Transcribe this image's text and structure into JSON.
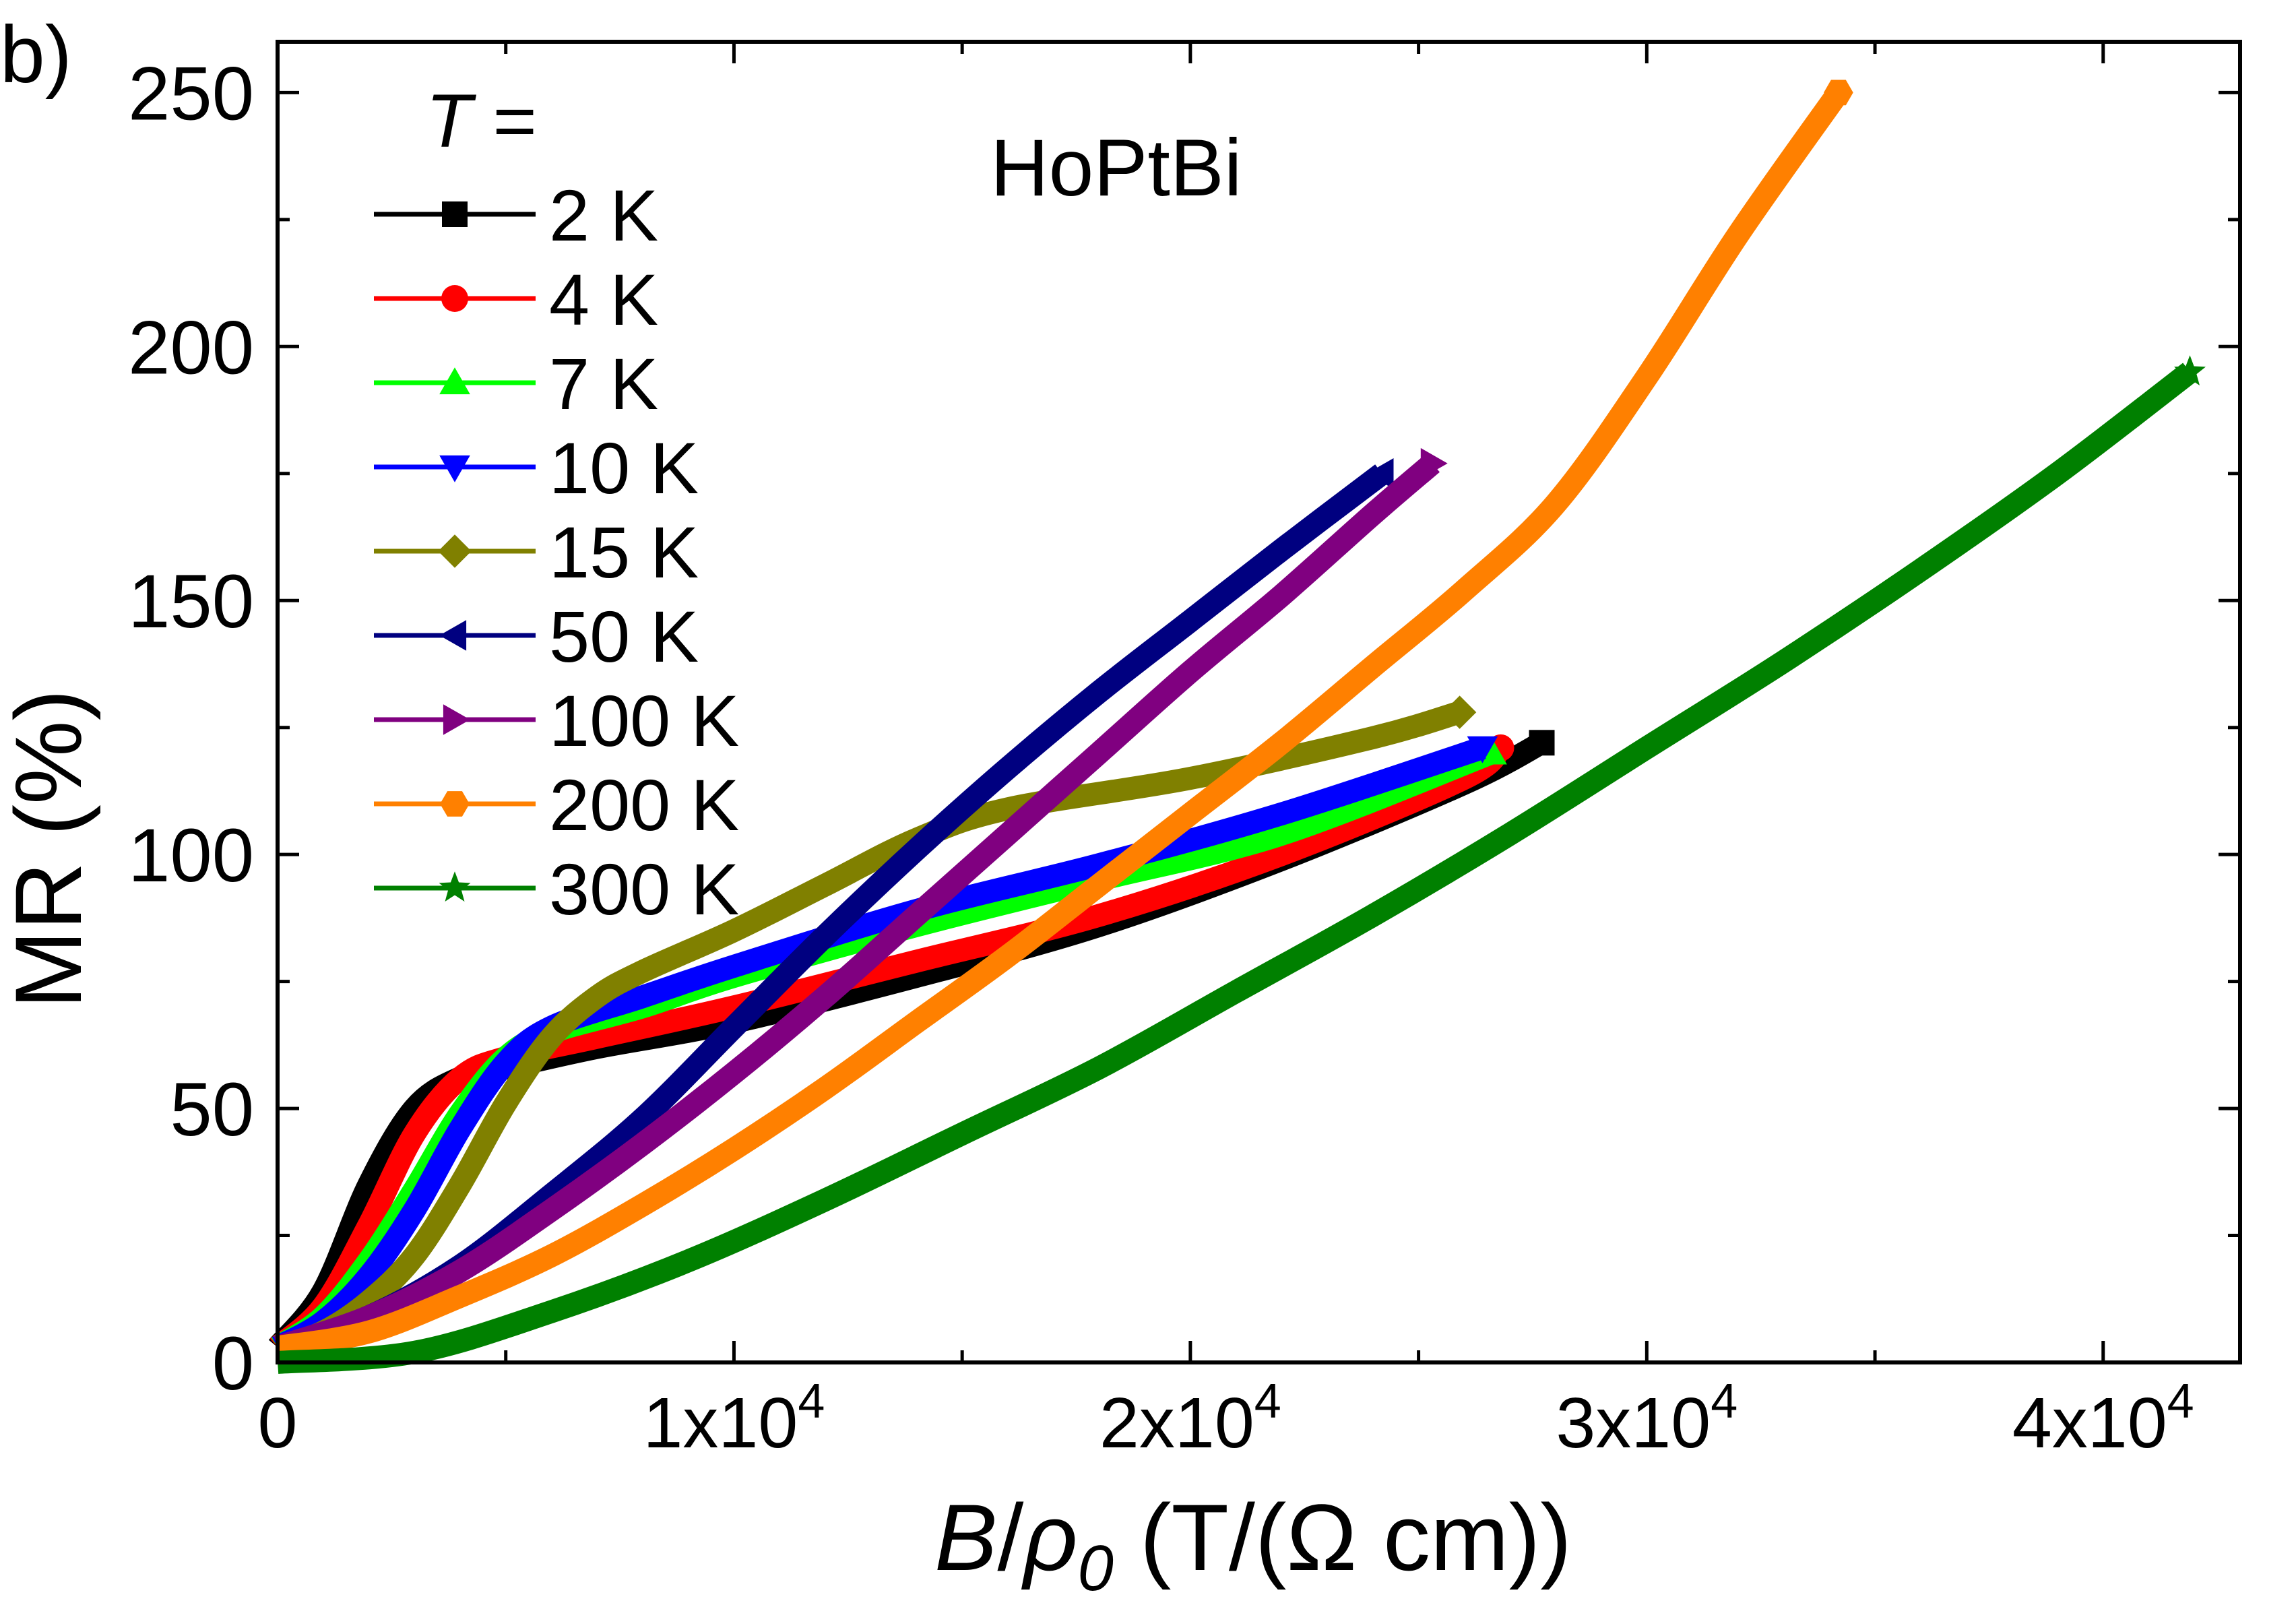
{
  "panel_label": "b)",
  "chart_data": {
    "type": "line",
    "title": "HoPtBi",
    "xlabel": {
      "var_main": "B",
      "slash": "/",
      "var_rho": "ρ",
      "var_sub": "0",
      "units": " (T/(Ω cm))"
    },
    "ylabel": "MR (%)",
    "xlim": [
      0,
      43000
    ],
    "ylim": [
      0,
      260
    ],
    "x_ticks": [
      {
        "value": 0,
        "mantissa": "0",
        "exp": ""
      },
      {
        "value": 10000,
        "mantissa": "1x10",
        "exp": "4"
      },
      {
        "value": 20000,
        "mantissa": "2x10",
        "exp": "4"
      },
      {
        "value": 30000,
        "mantissa": "3x10",
        "exp": "4"
      },
      {
        "value": 40000,
        "mantissa": "4x10",
        "exp": "4"
      }
    ],
    "x_minor_ticks": [
      5000,
      15000,
      25000,
      35000
    ],
    "y_ticks": [
      {
        "value": 0,
        "label": "0"
      },
      {
        "value": 50,
        "label": "50"
      },
      {
        "value": 100,
        "label": "100"
      },
      {
        "value": 150,
        "label": "150"
      },
      {
        "value": 200,
        "label": "200"
      },
      {
        "value": 250,
        "label": "250"
      }
    ],
    "y_minor_ticks": [
      25,
      75,
      125,
      175,
      225
    ],
    "legend": {
      "title_var": "T",
      "title_rest": " =",
      "position": "top-left"
    },
    "series": [
      {
        "name": "2 K",
        "color": "#000000",
        "marker": "square",
        "x": [
          0,
          1000,
          2000,
          3000,
          4000,
          5000,
          7000,
          10000,
          14000,
          18000,
          22000,
          26000,
          27700
        ],
        "y": [
          3,
          14,
          35,
          50,
          56,
          58,
          62,
          67,
          76,
          86,
          99,
          114,
          122
        ]
      },
      {
        "name": "4 K",
        "color": "#ff0000",
        "marker": "circle",
        "x": [
          0,
          1000,
          2000,
          3000,
          4000,
          5000,
          7000,
          10000,
          14000,
          18000,
          22000,
          26000,
          26800
        ],
        "y": [
          3,
          11,
          27,
          45,
          56,
          60,
          64,
          70,
          79,
          88,
          100,
          115,
          121
        ]
      },
      {
        "name": "7 K",
        "color": "#00ff00",
        "marker": "triangle-up",
        "x": [
          0,
          1000,
          2000,
          3000,
          4000,
          5000,
          6000,
          8000,
          10000,
          14000,
          18000,
          22000,
          26600
        ],
        "y": [
          3,
          9,
          20,
          34,
          49,
          60,
          65,
          70,
          76,
          86,
          95,
          104,
          120
        ]
      },
      {
        "name": "10 K",
        "color": "#0000ff",
        "marker": "triangle-down",
        "x": [
          0,
          1000,
          2000,
          3000,
          4000,
          5000,
          6000,
          8000,
          10000,
          14000,
          18000,
          22000,
          26400
        ],
        "y": [
          3,
          8,
          17,
          30,
          46,
          59,
          66,
          72,
          78,
          89,
          98,
          108,
          121
        ]
      },
      {
        "name": "15 K",
        "color": "#808000",
        "marker": "diamond",
        "x": [
          0,
          1000,
          2000,
          3000,
          4000,
          5000,
          6000,
          7000,
          8000,
          10000,
          12000,
          14000,
          16000,
          20000,
          24000,
          25900
        ],
        "y": [
          3,
          6,
          12,
          21,
          35,
          51,
          64,
          72,
          77,
          85,
          94,
          103,
          109,
          115,
          123,
          128
        ]
      },
      {
        "name": "50 K",
        "color": "#000080",
        "marker": "triangle-left",
        "x": [
          0,
          2000,
          4000,
          6000,
          8000,
          10000,
          12000,
          14000,
          16000,
          18000,
          20000,
          22000,
          24200
        ],
        "y": [
          3,
          9,
          19,
          33,
          48,
          66,
          84,
          101,
          117,
          132,
          146,
          160,
          175
        ]
      },
      {
        "name": "100 K",
        "color": "#800080",
        "marker": "triangle-right",
        "x": [
          0,
          2000,
          4000,
          6000,
          8000,
          10000,
          12000,
          14000,
          16000,
          18000,
          20000,
          22000,
          24000,
          25300
        ],
        "y": [
          3,
          9,
          18,
          30,
          43,
          57,
          72,
          88,
          104,
          120,
          136,
          151,
          167,
          177
        ]
      },
      {
        "name": "200 K",
        "color": "#ff8000",
        "marker": "hexagon",
        "x": [
          0,
          2000,
          4000,
          6000,
          8000,
          10000,
          12000,
          14000,
          16000,
          18000,
          20000,
          22000,
          24000,
          26000,
          28000,
          30000,
          32000,
          34200
        ],
        "y": [
          3,
          6,
          13,
          21,
          31,
          42,
          54,
          67,
          80,
          94,
          108,
          122,
          137,
          152,
          169,
          194,
          222,
          250
        ]
      },
      {
        "name": "300 K",
        "color": "#008000",
        "marker": "star",
        "x": [
          0,
          3000,
          6000,
          9000,
          12000,
          15000,
          18000,
          21000,
          24000,
          27000,
          30000,
          33000,
          36000,
          39000,
          41900
        ],
        "y": [
          0,
          2,
          10,
          20,
          32,
          45,
          58,
          73,
          88,
          104,
          121,
          138,
          156,
          175,
          195
        ]
      }
    ]
  }
}
